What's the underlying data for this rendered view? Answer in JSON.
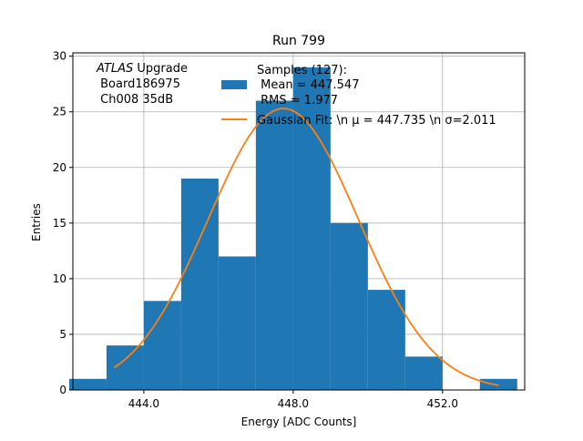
{
  "chart_data": {
    "type": "bar",
    "title": "Run 799",
    "xlabel": "Energy [ADC Counts]",
    "ylabel": "Entries",
    "xlim": [
      442.1,
      454.2
    ],
    "ylim": [
      0,
      30.3
    ],
    "grid": true,
    "x_ticks": [
      444,
      448,
      452
    ],
    "x_tick_labels": [
      "444.0",
      "448.0",
      "452.0"
    ],
    "y_ticks": [
      0,
      5,
      10,
      15,
      20,
      25,
      30
    ],
    "y_tick_labels": [
      "0",
      "5",
      "10",
      "15",
      "20",
      "25",
      "30"
    ],
    "histogram": {
      "color": "#1f77b4",
      "bins": [
        {
          "x0": 442.0,
          "x1": 443.0,
          "count": 1
        },
        {
          "x0": 443.0,
          "x1": 444.0,
          "count": 4
        },
        {
          "x0": 444.0,
          "x1": 445.0,
          "count": 8
        },
        {
          "x0": 445.0,
          "x1": 446.0,
          "count": 19
        },
        {
          "x0": 446.0,
          "x1": 447.0,
          "count": 12
        },
        {
          "x0": 447.0,
          "x1": 448.0,
          "count": 26
        },
        {
          "x0": 448.0,
          "x1": 449.0,
          "count": 29
        },
        {
          "x0": 449.0,
          "x1": 450.0,
          "count": 15
        },
        {
          "x0": 450.0,
          "x1": 451.0,
          "count": 9
        },
        {
          "x0": 451.0,
          "x1": 452.0,
          "count": 3
        },
        {
          "x0": 452.0,
          "x1": 453.0,
          "count": 0
        },
        {
          "x0": 453.0,
          "x1": 454.0,
          "count": 1
        }
      ]
    },
    "fit": {
      "color": "#ff7f0e",
      "mu": 447.735,
      "sigma": 2.011,
      "amplitude": 25.3,
      "x_range": [
        443.2,
        453.5
      ]
    },
    "legend": {
      "placement": "top-right",
      "entries": [
        {
          "kind": "patch",
          "lines": [
            "Samples (127):",
            " Mean = 447.547",
            " RMS = 1.977"
          ]
        },
        {
          "kind": "line",
          "lines": [
            "Gaussian Fit: \\n μ = 447.735 \\n σ=2.011"
          ]
        }
      ]
    },
    "annotation": {
      "italic": "ATLAS",
      "rest": " Upgrade",
      "line2": " Board186975",
      "line3": " Ch008 35dB"
    }
  }
}
